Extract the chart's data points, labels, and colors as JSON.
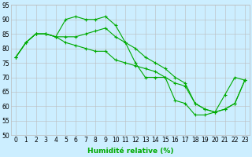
{
  "xlabel": "Humidité relative (%)",
  "background_color": "#cceeff",
  "grid_color": "#bbbbbb",
  "line_color": "#00aa00",
  "marker": "+",
  "xlim": [
    -0.5,
    23.5
  ],
  "ylim": [
    50,
    95
  ],
  "yticks": [
    50,
    55,
    60,
    65,
    70,
    75,
    80,
    85,
    90,
    95
  ],
  "xticks": [
    0,
    1,
    2,
    3,
    4,
    5,
    6,
    7,
    8,
    9,
    10,
    11,
    12,
    13,
    14,
    15,
    16,
    17,
    18,
    19,
    20,
    21,
    22,
    23
  ],
  "series": [
    [
      77,
      82,
      85,
      85,
      84,
      90,
      91,
      90,
      90,
      91,
      88,
      82,
      75,
      70,
      70,
      70,
      62,
      61,
      57,
      57,
      58,
      64,
      70,
      69
    ],
    [
      77,
      82,
      85,
      85,
      84,
      84,
      84,
      85,
      86,
      87,
      84,
      82,
      80,
      77,
      75,
      73,
      70,
      68,
      61,
      59,
      58,
      59,
      61,
      69
    ],
    [
      77,
      82,
      85,
      85,
      84,
      82,
      81,
      80,
      79,
      79,
      76,
      75,
      74,
      73,
      72,
      70,
      68,
      67,
      61,
      59,
      58,
      59,
      61,
      69
    ]
  ],
  "tick_fontsize": 5.5,
  "xlabel_fontsize": 6.5
}
